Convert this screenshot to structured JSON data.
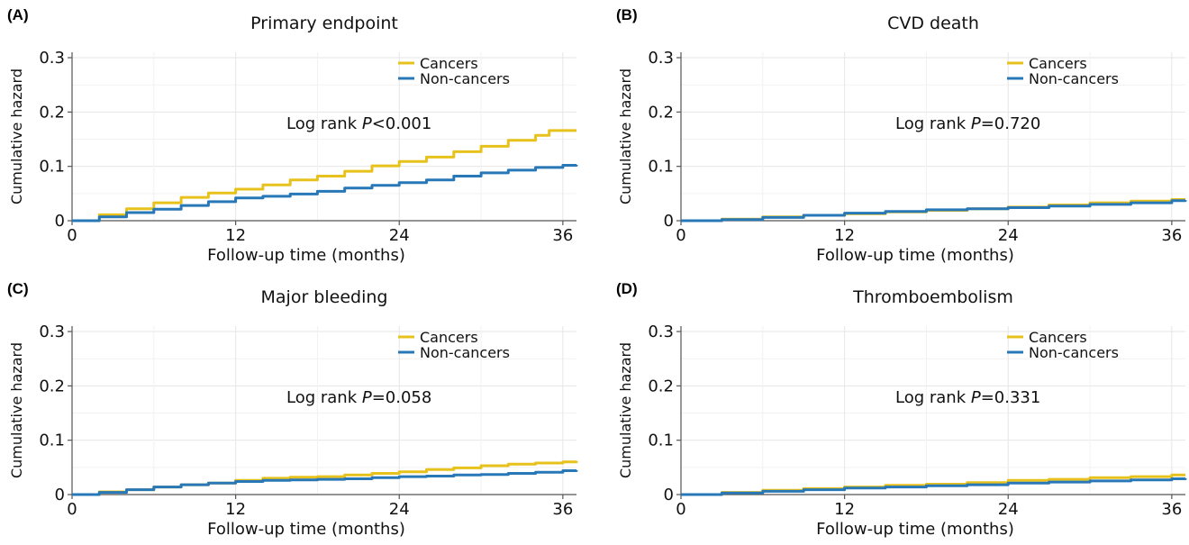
{
  "chart_data": [
    {
      "type": "line",
      "panel_label": "(A)",
      "title": "Primary endpoint",
      "xlabel": "Follow-up time (months)",
      "ylabel": "Cumulative hazard",
      "xlim": [
        0,
        37
      ],
      "ylim": [
        0,
        0.31
      ],
      "x_ticks": [
        0,
        12,
        24,
        36
      ],
      "x_tick_labels": [
        "0",
        "12",
        "24",
        "36"
      ],
      "y_ticks": [
        0,
        0.1,
        0.2,
        0.3
      ],
      "y_tick_labels": [
        "0",
        "0.1",
        "0.2",
        "0.3"
      ],
      "grid": true,
      "legend_position": "top-right",
      "annotation": {
        "prefix": "Log rank ",
        "italic": "P",
        "suffix": "<0.001"
      },
      "series": [
        {
          "name": "Cancers",
          "color": "#E8C21C",
          "x": [
            0,
            2,
            4,
            6,
            8,
            10,
            12,
            14,
            16,
            18,
            20,
            22,
            24,
            26,
            28,
            30,
            32,
            34,
            35,
            37
          ],
          "y": [
            0,
            0.011,
            0.022,
            0.033,
            0.043,
            0.051,
            0.058,
            0.066,
            0.075,
            0.082,
            0.091,
            0.101,
            0.109,
            0.117,
            0.127,
            0.137,
            0.148,
            0.157,
            0.166,
            0.166
          ]
        },
        {
          "name": "Non-cancers",
          "color": "#2878B8",
          "x": [
            0,
            2,
            4,
            6,
            8,
            10,
            12,
            14,
            16,
            18,
            20,
            22,
            24,
            26,
            28,
            30,
            32,
            34,
            36,
            37
          ],
          "y": [
            0,
            0.007,
            0.015,
            0.021,
            0.028,
            0.035,
            0.042,
            0.045,
            0.049,
            0.054,
            0.06,
            0.065,
            0.07,
            0.075,
            0.082,
            0.088,
            0.093,
            0.098,
            0.102,
            0.103
          ]
        }
      ]
    },
    {
      "type": "line",
      "panel_label": "(B)",
      "title": "CVD death",
      "xlabel": "Follow-up time (months)",
      "ylabel": "Cumulative hazard",
      "xlim": [
        0,
        37
      ],
      "ylim": [
        0,
        0.31
      ],
      "x_ticks": [
        0,
        12,
        24,
        36
      ],
      "x_tick_labels": [
        "0",
        "12",
        "24",
        "36"
      ],
      "y_ticks": [
        0,
        0.1,
        0.2,
        0.3
      ],
      "y_tick_labels": [
        "0",
        "0.1",
        "0.2",
        "0.3"
      ],
      "grid": true,
      "legend_position": "top-right",
      "annotation": {
        "prefix": "Log rank ",
        "italic": "P",
        "suffix": "=0.720"
      },
      "series": [
        {
          "name": "Cancers",
          "color": "#E8C21C",
          "x": [
            0,
            3,
            6,
            9,
            12,
            15,
            18,
            21,
            24,
            27,
            30,
            33,
            36,
            37
          ],
          "y": [
            0,
            0.003,
            0.007,
            0.01,
            0.013,
            0.016,
            0.019,
            0.022,
            0.025,
            0.029,
            0.033,
            0.036,
            0.039,
            0.039
          ]
        },
        {
          "name": "Non-cancers",
          "color": "#2878B8",
          "x": [
            0,
            3,
            6,
            9,
            12,
            15,
            18,
            21,
            24,
            27,
            30,
            33,
            36,
            37
          ],
          "y": [
            0,
            0.002,
            0.006,
            0.01,
            0.014,
            0.017,
            0.02,
            0.022,
            0.024,
            0.027,
            0.03,
            0.033,
            0.037,
            0.038
          ]
        }
      ]
    },
    {
      "type": "line",
      "panel_label": "(C)",
      "title": "Major bleeding",
      "xlabel": "Follow-up time (months)",
      "ylabel": "Cumulative hazard",
      "xlim": [
        0,
        37
      ],
      "ylim": [
        0,
        0.31
      ],
      "x_ticks": [
        0,
        12,
        24,
        36
      ],
      "x_tick_labels": [
        "0",
        "12",
        "24",
        "36"
      ],
      "y_ticks": [
        0,
        0.1,
        0.2,
        0.3
      ],
      "y_tick_labels": [
        "0",
        "0.1",
        "0.2",
        "0.3"
      ],
      "grid": true,
      "legend_position": "top-right",
      "annotation": {
        "prefix": "Log rank ",
        "italic": "P",
        "suffix": "=0.058"
      },
      "series": [
        {
          "name": "Cancers",
          "color": "#E8C21C",
          "x": [
            0,
            2,
            4,
            6,
            8,
            10,
            12,
            14,
            16,
            18,
            20,
            22,
            24,
            26,
            28,
            30,
            32,
            34,
            36,
            37
          ],
          "y": [
            0,
            0.005,
            0.009,
            0.014,
            0.018,
            0.021,
            0.026,
            0.03,
            0.032,
            0.033,
            0.036,
            0.039,
            0.042,
            0.046,
            0.049,
            0.053,
            0.056,
            0.058,
            0.06,
            0.062
          ]
        },
        {
          "name": "Non-cancers",
          "color": "#2878B8",
          "x": [
            0,
            2,
            4,
            6,
            8,
            10,
            12,
            14,
            16,
            18,
            20,
            22,
            24,
            26,
            28,
            30,
            32,
            34,
            36,
            37
          ],
          "y": [
            0,
            0.004,
            0.009,
            0.014,
            0.018,
            0.021,
            0.024,
            0.026,
            0.027,
            0.028,
            0.029,
            0.031,
            0.033,
            0.034,
            0.036,
            0.037,
            0.039,
            0.041,
            0.044,
            0.045
          ]
        }
      ]
    },
    {
      "type": "line",
      "panel_label": "(D)",
      "title": "Thromboembolism",
      "xlabel": "Follow-up time (months)",
      "ylabel": "Cumulative hazard",
      "xlim": [
        0,
        37
      ],
      "ylim": [
        0,
        0.31
      ],
      "x_ticks": [
        0,
        12,
        24,
        36
      ],
      "x_tick_labels": [
        "0",
        "12",
        "24",
        "36"
      ],
      "y_ticks": [
        0,
        0.1,
        0.2,
        0.3
      ],
      "y_tick_labels": [
        "0",
        "0.1",
        "0.2",
        "0.3"
      ],
      "grid": true,
      "legend_position": "top-right",
      "annotation": {
        "prefix": "Log rank ",
        "italic": "P",
        "suffix": "=0.331"
      },
      "series": [
        {
          "name": "Cancers",
          "color": "#E8C21C",
          "x": [
            0,
            3,
            6,
            9,
            12,
            15,
            18,
            21,
            24,
            27,
            30,
            33,
            36,
            37
          ],
          "y": [
            0,
            0.004,
            0.008,
            0.011,
            0.014,
            0.017,
            0.019,
            0.022,
            0.026,
            0.028,
            0.031,
            0.033,
            0.036,
            0.036
          ]
        },
        {
          "name": "Non-cancers",
          "color": "#2878B8",
          "x": [
            0,
            3,
            6,
            9,
            12,
            15,
            18,
            21,
            24,
            27,
            30,
            33,
            36,
            37
          ],
          "y": [
            0,
            0.003,
            0.006,
            0.009,
            0.012,
            0.014,
            0.016,
            0.018,
            0.021,
            0.023,
            0.025,
            0.027,
            0.029,
            0.03
          ]
        }
      ]
    }
  ]
}
